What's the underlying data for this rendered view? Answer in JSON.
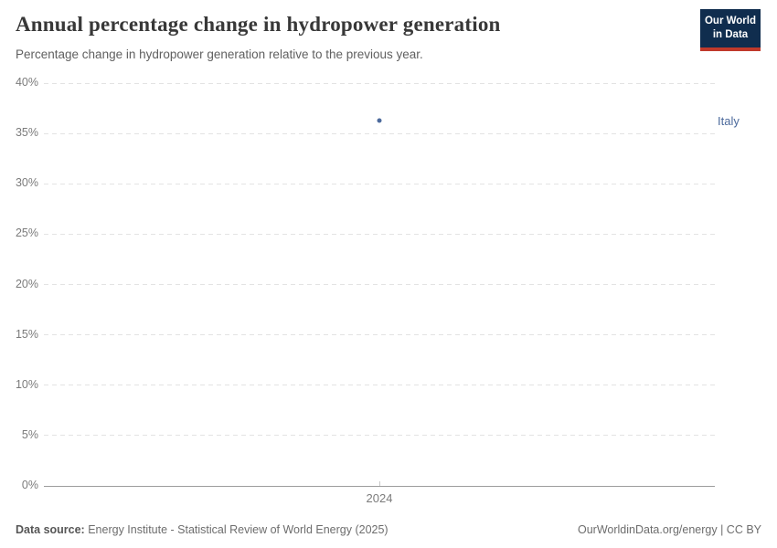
{
  "header": {
    "title": "Annual percentage change in hydropower generation",
    "subtitle": "Percentage change in hydropower generation relative to the previous year.",
    "logo": {
      "line1": "Our World",
      "line2": "in Data",
      "bg_color": "#102d4e",
      "accent_color": "#c0392b"
    }
  },
  "chart_data": {
    "type": "scatter",
    "title": "Annual percentage change in hydropower generation",
    "subtitle": "Percentage change in hydropower generation relative to the previous year.",
    "x": [
      2024
    ],
    "xtick_labels": [
      "2024"
    ],
    "series": [
      {
        "name": "Italy",
        "values": [
          36.3
        ],
        "color": "#4c6a9c"
      }
    ],
    "ylim": [
      0,
      40
    ],
    "yticks": [
      0,
      5,
      10,
      15,
      20,
      25,
      30,
      35,
      40
    ],
    "ytick_suffix": "%",
    "grid": "horizontal-dashed",
    "legend_position": "right-of-point"
  },
  "footer": {
    "datasource_label": "Data source:",
    "datasource_text": " Energy Institute - Statistical Review of World Energy (2025)",
    "credit": "OurWorldinData.org/energy | CC BY"
  },
  "colors": {
    "title": "#383838",
    "subtitle": "#606060",
    "axis_label": "#7b7b7b",
    "gridline": "#e3e3e3",
    "zero_line": "#9c9c9c",
    "accent_series": "#4c6a9c"
  }
}
